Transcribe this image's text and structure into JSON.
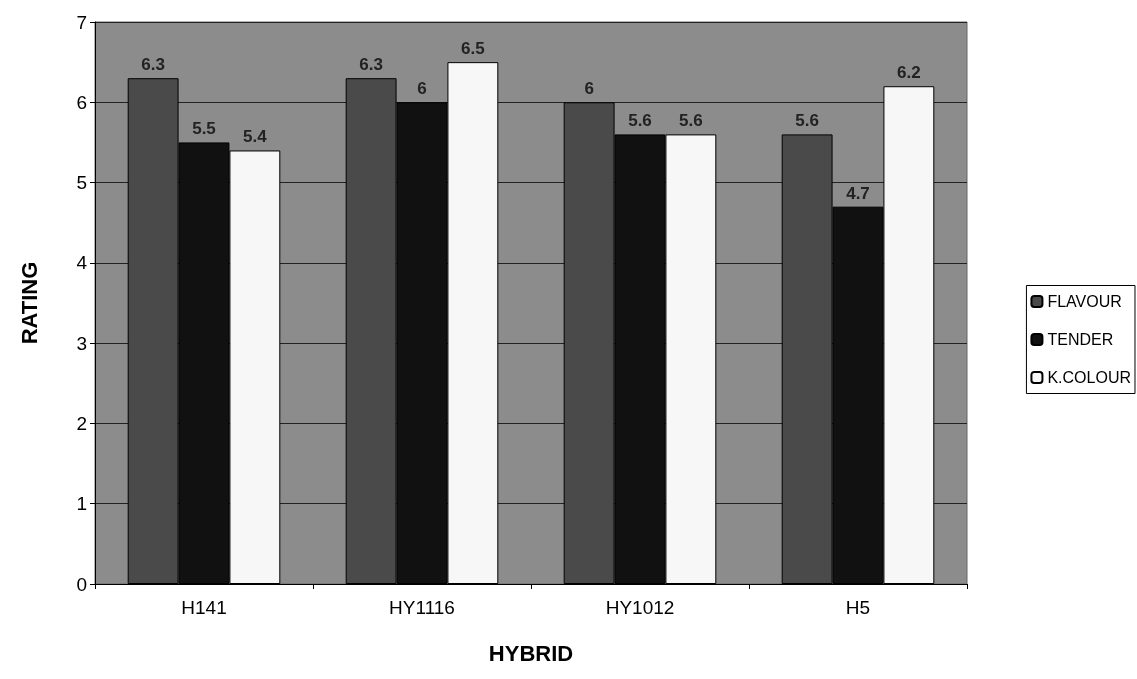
{
  "chart_data": {
    "type": "bar",
    "xlabel": "HYBRID",
    "ylabel": "RATING",
    "categories": [
      "H141",
      "HY1116",
      "HY1012",
      "H5"
    ],
    "series": [
      {
        "name": "FLAVOUR",
        "color": "#4a4a4a",
        "values": [
          6.3,
          6.3,
          6,
          5.6
        ]
      },
      {
        "name": "TENDER",
        "color": "#111111",
        "values": [
          5.5,
          6,
          5.6,
          4.7
        ]
      },
      {
        "name": "K.COLOUR",
        "color": "#f7f7f7",
        "values": [
          5.4,
          6.5,
          5.6,
          6.2
        ]
      }
    ],
    "ylim": [
      0,
      7
    ],
    "yticks": [
      0,
      1,
      2,
      3,
      4,
      5,
      6,
      7
    ],
    "grid": "y",
    "legend": "right",
    "data_labels": true
  }
}
